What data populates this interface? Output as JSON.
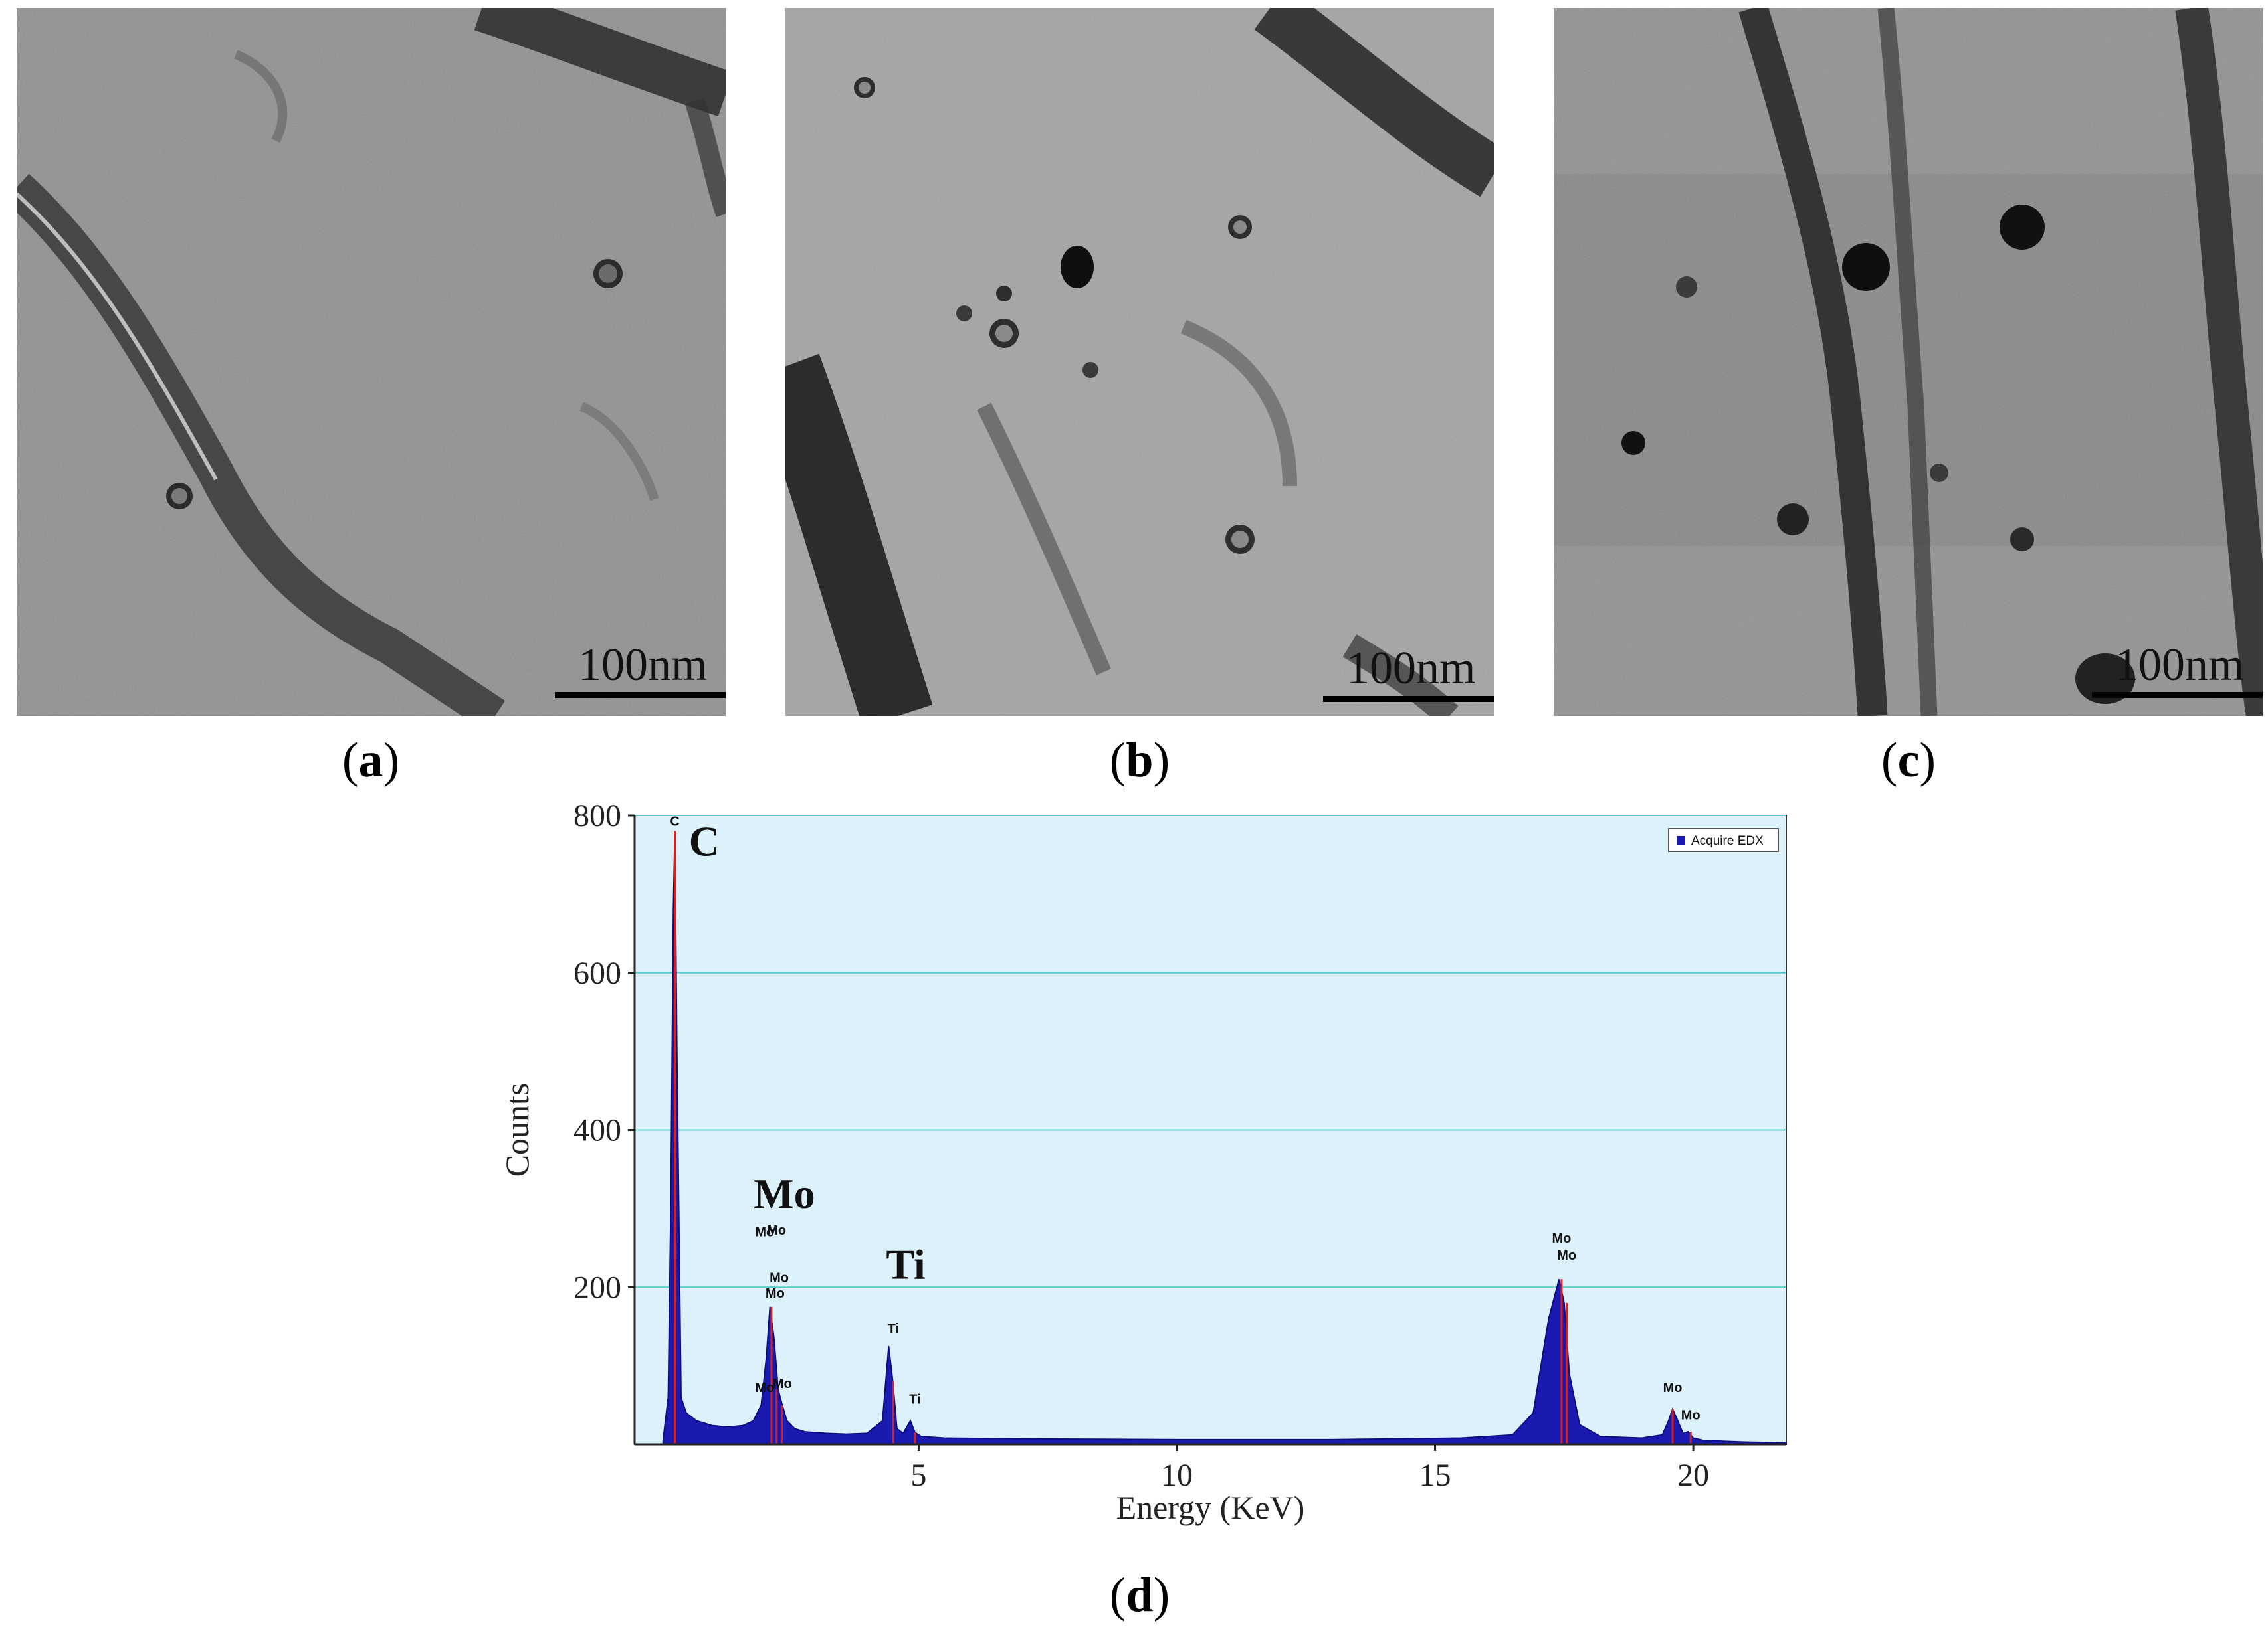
{
  "panels": [
    {
      "id": "a",
      "caption_open": "(",
      "caption_letter": "a",
      "caption_close": ")",
      "scale_label": "100nm"
    },
    {
      "id": "b",
      "caption_open": "(",
      "caption_letter": "b",
      "caption_close": ")",
      "scale_label": "100nm"
    },
    {
      "id": "c",
      "caption_open": "(",
      "caption_letter": "c",
      "caption_close": ")",
      "scale_label": "100nm"
    }
  ],
  "figure_d": {
    "caption_open": "(",
    "caption_letter": "d",
    "caption_close": ")"
  },
  "chart_data": {
    "type": "line",
    "title": "",
    "xlabel": "Energy (KeV)",
    "ylabel": "Counts",
    "xlim": [
      -0.5,
      21.8
    ],
    "ylim": [
      0,
      800
    ],
    "x_ticks": [
      5,
      10,
      15,
      20
    ],
    "y_ticks": [
      200,
      400,
      600,
      800
    ],
    "grid": true,
    "legend_placement": "top-right",
    "legend_entries": [
      "Acquire EDX"
    ],
    "background_color": "#dcf1fa",
    "fill_color": "#1a1ab0",
    "gridline_color": "#5cc9cc",
    "peak_marker_color": "#d42020",
    "series": [
      {
        "name": "Acquire EDX",
        "x": [
          0.05,
          0.15,
          0.2,
          0.25,
          0.28,
          0.32,
          0.4,
          0.5,
          0.7,
          1.0,
          1.3,
          1.6,
          1.8,
          1.95,
          2.05,
          2.12,
          2.2,
          2.28,
          2.36,
          2.45,
          2.6,
          2.8,
          3.2,
          3.6,
          4.0,
          4.3,
          4.42,
          4.5,
          4.58,
          4.7,
          4.84,
          4.93,
          5.05,
          5.5,
          7.0,
          10.0,
          13.0,
          15.5,
          16.5,
          16.9,
          17.2,
          17.4,
          17.5,
          17.6,
          17.8,
          18.2,
          19.0,
          19.4,
          19.52,
          19.6,
          19.7,
          19.8,
          19.9,
          20.0,
          20.2,
          21.0,
          21.8
        ],
        "y": [
          5,
          60,
          300,
          680,
          780,
          500,
          60,
          40,
          30,
          24,
          22,
          24,
          30,
          50,
          110,
          175,
          135,
          70,
          50,
          30,
          20,
          16,
          14,
          13,
          14,
          30,
          125,
          80,
          20,
          14,
          30,
          15,
          10,
          8,
          7,
          6,
          6,
          8,
          12,
          40,
          160,
          210,
          180,
          90,
          25,
          10,
          8,
          12,
          30,
          45,
          30,
          14,
          16,
          8,
          5,
          3,
          2
        ]
      }
    ],
    "peak_labels": [
      {
        "text": "C",
        "x": 0.28,
        "y": 780
      },
      {
        "text": "Mo",
        "x": 2.02,
        "y": 258
      },
      {
        "text": "Mo",
        "x": 2.25,
        "y": 260
      },
      {
        "text": "Mo",
        "x": 2.3,
        "y": 200
      },
      {
        "text": "Mo",
        "x": 2.22,
        "y": 180
      },
      {
        "text": "Mo",
        "x": 2.02,
        "y": 60
      },
      {
        "text": "Mo",
        "x": 2.36,
        "y": 65
      },
      {
        "text": "Ti",
        "x": 4.51,
        "y": 135
      },
      {
        "text": "Ti",
        "x": 4.93,
        "y": 45
      },
      {
        "text": "Mo",
        "x": 17.45,
        "y": 250
      },
      {
        "text": "Mo",
        "x": 17.55,
        "y": 228
      },
      {
        "text": "Mo",
        "x": 19.6,
        "y": 60
      },
      {
        "text": "Mo",
        "x": 19.95,
        "y": 25
      }
    ],
    "peak_markers": [
      0.28,
      2.15,
      2.25,
      2.35,
      4.51,
      4.93,
      17.45,
      17.55,
      19.6,
      19.95
    ],
    "annotations": [
      {
        "text": "C",
        "x": 0.85,
        "y": 770
      },
      {
        "text": "Mo",
        "x": 2.4,
        "y": 322
      },
      {
        "text": "Ti",
        "x": 4.75,
        "y": 232
      }
    ]
  }
}
